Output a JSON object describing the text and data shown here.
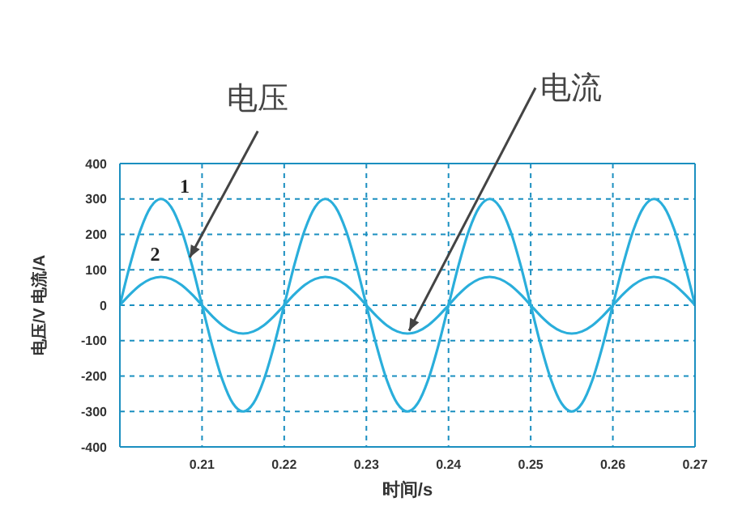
{
  "chart_data": {
    "type": "line",
    "xlabel": "时间/s",
    "ylabel": "电压/V 电流/A",
    "x": [
      0.2,
      0.20125,
      0.2025,
      0.20375,
      0.205,
      0.20625,
      0.2075,
      0.20875,
      0.21,
      0.21125,
      0.2125,
      0.21375,
      0.215,
      0.21625,
      0.2175,
      0.21875,
      0.22,
      0.22125,
      0.2225,
      0.22375,
      0.225,
      0.22625,
      0.2275,
      0.22875,
      0.23,
      0.23125,
      0.2325,
      0.23375,
      0.235,
      0.23625,
      0.2375,
      0.23875,
      0.24,
      0.24125,
      0.2425,
      0.24375,
      0.245,
      0.24625,
      0.2475,
      0.24875,
      0.25,
      0.25125,
      0.2525,
      0.25375,
      0.255,
      0.25625,
      0.2575,
      0.25875,
      0.26,
      0.26125,
      0.2625,
      0.26375,
      0.265,
      0.26625,
      0.2675,
      0.26875,
      0.27
    ],
    "series": [
      {
        "name": "1",
        "color": "#2aaedb",
        "values": [
          0,
          115,
          212,
          277,
          300,
          277,
          212,
          115,
          0,
          -115,
          -212,
          -277,
          -300,
          -277,
          -212,
          -115,
          0,
          115,
          212,
          277,
          300,
          277,
          212,
          115,
          0,
          -115,
          -212,
          -277,
          -300,
          -277,
          -212,
          -115,
          0,
          115,
          212,
          277,
          300,
          277,
          212,
          115,
          0,
          -115,
          -212,
          -277,
          -300,
          -277,
          -212,
          -115,
          0,
          115,
          212,
          277,
          300,
          277,
          212,
          115,
          0
        ]
      },
      {
        "name": "2",
        "color": "#2aaedb",
        "values": [
          0,
          31,
          57,
          74,
          80,
          74,
          57,
          31,
          0,
          -31,
          -57,
          -74,
          -80,
          -74,
          -57,
          -31,
          0,
          31,
          57,
          74,
          80,
          74,
          57,
          31,
          0,
          -31,
          -57,
          -74,
          -80,
          -74,
          -57,
          -31,
          0,
          31,
          57,
          74,
          80,
          74,
          57,
          31,
          0,
          -31,
          -57,
          -74,
          -80,
          -74,
          -57,
          -31,
          0,
          31,
          57,
          74,
          80,
          74,
          57,
          31,
          0
        ]
      }
    ],
    "xlim": [
      0.2,
      0.27
    ],
    "xticks": [
      0.21,
      0.22,
      0.23,
      0.24,
      0.25,
      0.26,
      0.27
    ],
    "ylim": [
      -400,
      400
    ],
    "yticks": [
      -400,
      -300,
      -200,
      -100,
      0,
      100,
      200,
      300,
      400
    ],
    "grid": true,
    "marker": "none",
    "line_style": "solid",
    "annotations": [
      {
        "text": "电压",
        "x": 0.2085,
        "y": 135
      },
      {
        "text": "电流",
        "x": 0.2352,
        "y": -72
      }
    ]
  }
}
